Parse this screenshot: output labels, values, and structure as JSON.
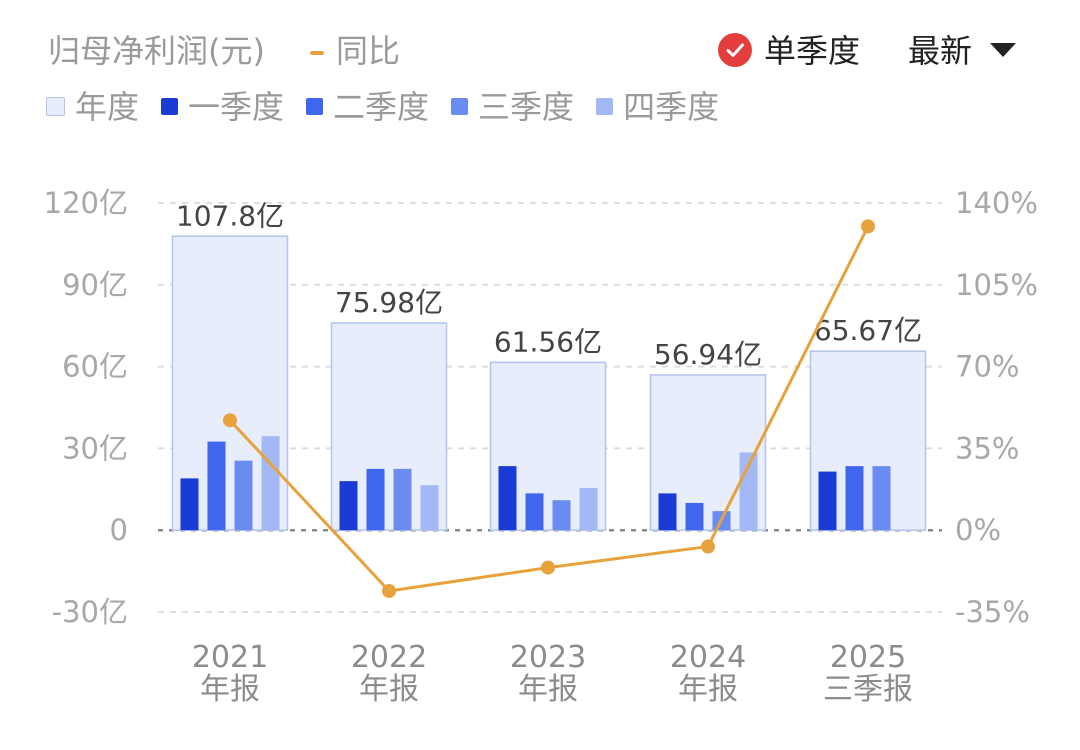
{
  "header": {
    "title": "归母净利润(元)",
    "yoy_label": "同比",
    "quarter_toggle_label": "单季度",
    "latest_label": "最新"
  },
  "colors": {
    "annual": "#e8edfb",
    "annual_border": "#b4c4ee",
    "q1": "#1a3bd4",
    "q2": "#3f66ef",
    "q3": "#6a8cf0",
    "q4": "#a3b8f5",
    "yoy": "#e8a23c",
    "check": "#e43d3d"
  },
  "chart_data": {
    "type": "bar",
    "categories": [
      [
        "2021",
        "年报"
      ],
      [
        "2022",
        "年报"
      ],
      [
        "2023",
        "年报"
      ],
      [
        "2024",
        "年报"
      ],
      [
        "2025",
        "三季报"
      ]
    ],
    "series": [
      {
        "name": "年度",
        "values": [
          107.8,
          75.98,
          61.56,
          56.94,
          65.67
        ],
        "labels": [
          "107.8亿",
          "75.98亿",
          "61.56亿",
          "56.94亿",
          "65.67亿"
        ]
      },
      {
        "name": "一季度",
        "values": [
          19,
          18,
          23.5,
          13.5,
          21.5
        ]
      },
      {
        "name": "二季度",
        "values": [
          32.5,
          22.5,
          13.5,
          10,
          23.5
        ]
      },
      {
        "name": "三季度",
        "values": [
          25.5,
          22.5,
          11,
          7,
          23.5
        ]
      },
      {
        "name": "四季度",
        "values": [
          34.5,
          16.5,
          15.5,
          28.5,
          0
        ]
      }
    ],
    "yoy": {
      "name": "同比",
      "values": [
        47,
        -26,
        -16,
        -7,
        130
      ]
    },
    "left_axis": {
      "ylim": [
        -30,
        120
      ],
      "ticks": [
        120,
        90,
        60,
        30,
        0,
        -30
      ],
      "tick_labels": [
        "120亿",
        "90亿",
        "60亿",
        "30亿",
        "0",
        "-30亿"
      ]
    },
    "right_axis": {
      "ylim": [
        -35,
        140
      ],
      "ticks": [
        140,
        105,
        70,
        35,
        0,
        -35
      ],
      "tick_labels": [
        "140%",
        "105%",
        "70%",
        "35%",
        "0%",
        "-35%"
      ]
    },
    "grid": true,
    "legend_position": "top-left"
  }
}
